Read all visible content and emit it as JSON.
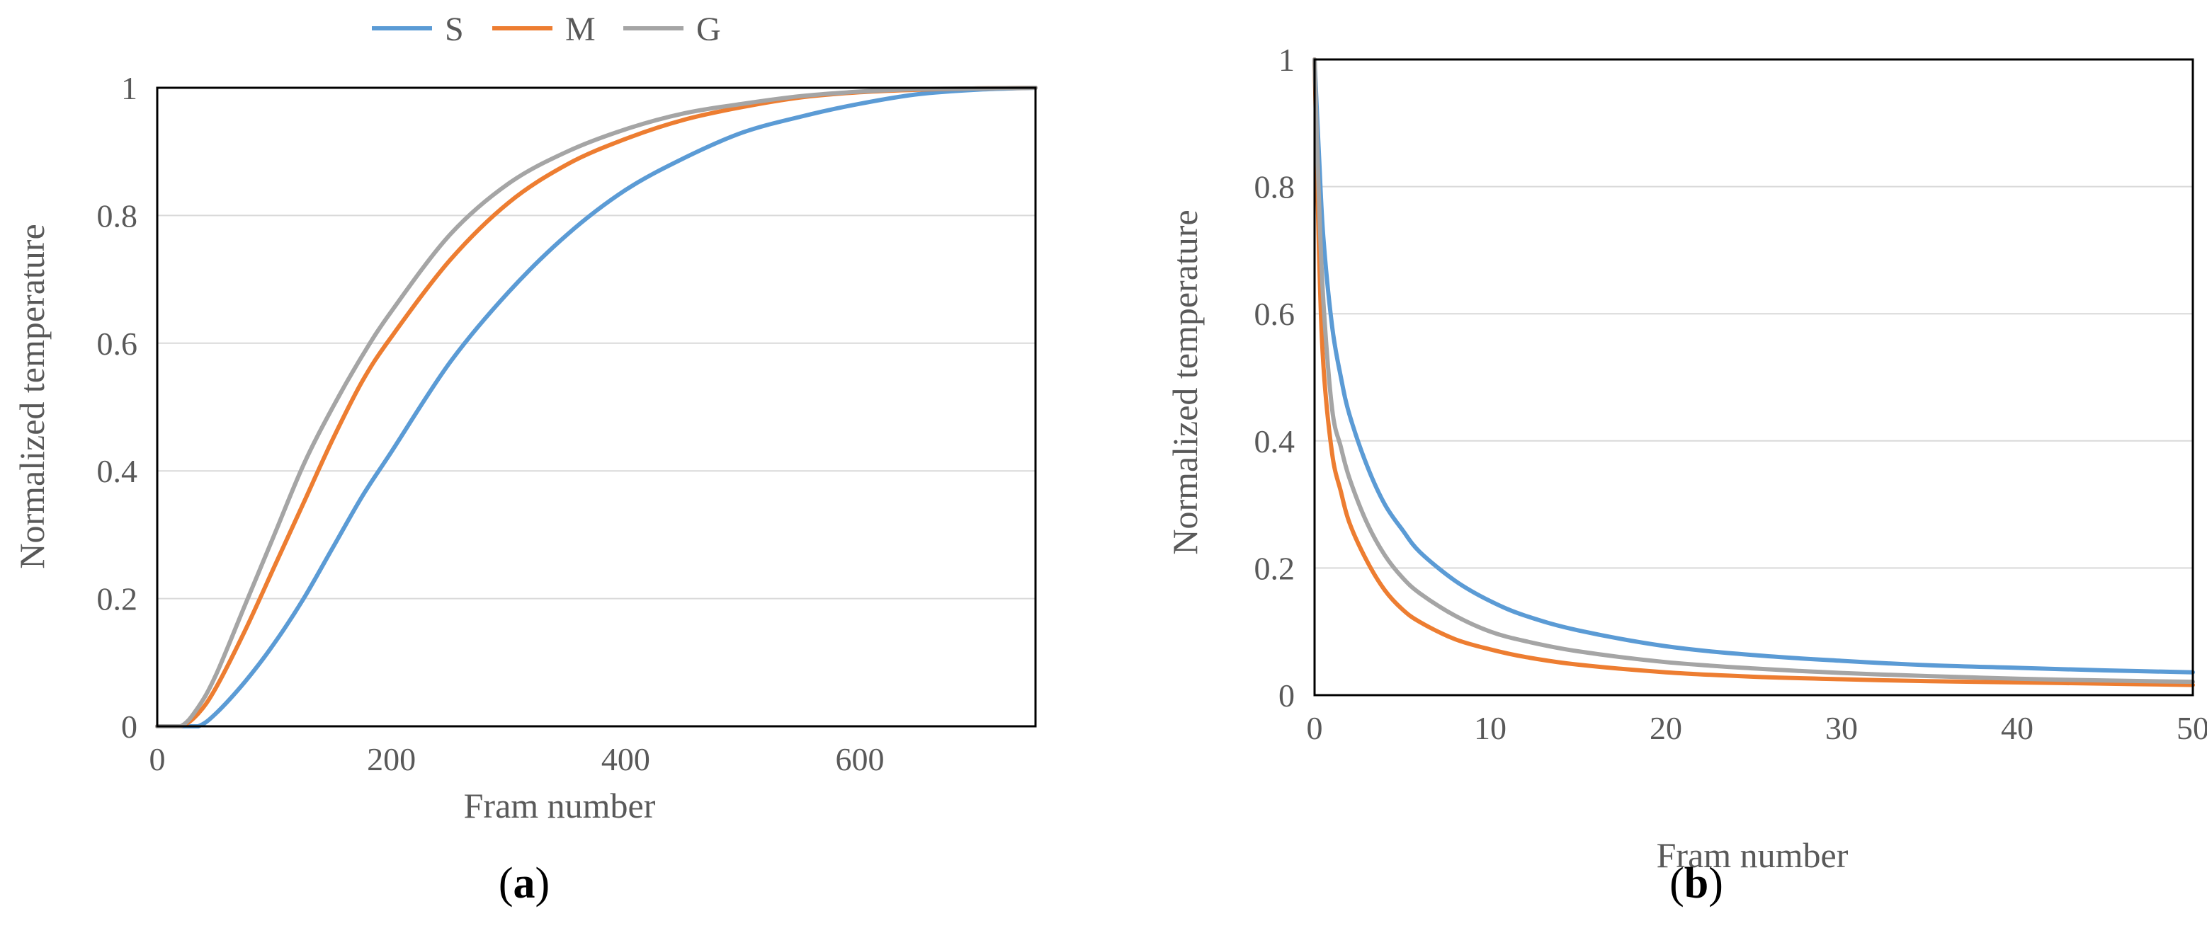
{
  "colors": {
    "S": "#5b9bd5",
    "M": "#ed7d31",
    "G": "#a5a5a5",
    "grid": "#d9d9d9",
    "frame": "#000000",
    "text": "#595959"
  },
  "legend": {
    "items": [
      "S",
      "M",
      "G"
    ]
  },
  "chart_data": [
    {
      "type": "line",
      "panel": "a",
      "panel_label": {
        "open": "(",
        "letter": "a",
        "close": ")"
      },
      "title": "",
      "xlabel": "Fram number",
      "ylabel": "Normalized  temperature",
      "xlim": [
        0,
        750
      ],
      "ylim": [
        0,
        1
      ],
      "xticks": [
        0,
        200,
        400,
        600
      ],
      "xtick_labels": [
        "0",
        "200",
        "400",
        "600"
      ],
      "yticks": [
        0,
        0.2,
        0.4,
        0.6,
        0.8,
        1
      ],
      "ytick_labels": [
        "0",
        "0.2",
        "0.4",
        "0.6",
        "0.8",
        "1"
      ],
      "grid": true,
      "legend_position": "top-center",
      "series": [
        {
          "name": "S",
          "x": [
            0,
            20,
            35,
            50,
            75,
            100,
            125,
            150,
            175,
            200,
            250,
            300,
            350,
            400,
            450,
            500,
            550,
            600,
            650,
            700,
            750
          ],
          "y": [
            0,
            0,
            0,
            0.02,
            0.07,
            0.13,
            0.2,
            0.28,
            0.36,
            0.43,
            0.57,
            0.68,
            0.77,
            0.84,
            0.89,
            0.93,
            0.955,
            0.975,
            0.99,
            0.997,
            1
          ]
        },
        {
          "name": "M",
          "x": [
            0,
            20,
            35,
            50,
            75,
            100,
            125,
            150,
            175,
            200,
            250,
            300,
            350,
            400,
            450,
            500,
            550,
            600,
            650,
            700,
            750
          ],
          "y": [
            0,
            0,
            0.02,
            0.06,
            0.15,
            0.25,
            0.35,
            0.45,
            0.54,
            0.61,
            0.73,
            0.82,
            0.88,
            0.92,
            0.95,
            0.97,
            0.985,
            0.993,
            0.997,
            0.999,
            1
          ]
        },
        {
          "name": "G",
          "x": [
            0,
            20,
            35,
            50,
            75,
            100,
            125,
            150,
            175,
            200,
            250,
            300,
            350,
            400,
            450,
            500,
            550,
            600,
            650,
            700,
            750
          ],
          "y": [
            0,
            0,
            0.03,
            0.08,
            0.19,
            0.3,
            0.41,
            0.5,
            0.58,
            0.65,
            0.77,
            0.85,
            0.9,
            0.935,
            0.96,
            0.975,
            0.987,
            0.994,
            0.998,
            0.999,
            1
          ]
        }
      ]
    },
    {
      "type": "line",
      "panel": "b",
      "panel_label": {
        "open": "(",
        "letter": "b",
        "close": ")"
      },
      "title": "",
      "xlabel": "Fram number",
      "ylabel": "Normalized  temperature",
      "xlim": [
        0,
        50
      ],
      "ylim": [
        0,
        1
      ],
      "xticks": [
        0,
        10,
        20,
        30,
        40,
        50
      ],
      "xtick_labels": [
        "0",
        "10",
        "20",
        "30",
        "40",
        "50"
      ],
      "yticks": [
        0,
        0.2,
        0.4,
        0.6,
        0.8,
        1
      ],
      "ytick_labels": [
        "0",
        "0.2",
        "0.4",
        "0.6",
        "0.8",
        "1"
      ],
      "grid": true,
      "series": [
        {
          "name": "S",
          "x": [
            0,
            0.25,
            0.5,
            1,
            1.5,
            2,
            3,
            4,
            5,
            6,
            8,
            10,
            12,
            15,
            20,
            25,
            30,
            35,
            40,
            45,
            50
          ],
          "y": [
            1,
            0.85,
            0.72,
            0.58,
            0.5,
            0.44,
            0.36,
            0.3,
            0.26,
            0.225,
            0.18,
            0.148,
            0.125,
            0.102,
            0.077,
            0.063,
            0.054,
            0.047,
            0.043,
            0.039,
            0.036
          ]
        },
        {
          "name": "M",
          "x": [
            0,
            0.25,
            0.5,
            1,
            1.5,
            2,
            3,
            4,
            5,
            6,
            8,
            10,
            12,
            15,
            20,
            25,
            30,
            35,
            40,
            45,
            50
          ],
          "y": [
            1,
            0.7,
            0.52,
            0.38,
            0.32,
            0.27,
            0.21,
            0.165,
            0.135,
            0.115,
            0.088,
            0.072,
            0.06,
            0.048,
            0.036,
            0.029,
            0.025,
            0.022,
            0.02,
            0.018,
            0.016
          ]
        },
        {
          "name": "G",
          "x": [
            0,
            0.25,
            0.5,
            1,
            1.5,
            2,
            3,
            4,
            5,
            6,
            8,
            10,
            12,
            15,
            20,
            25,
            30,
            35,
            40,
            45,
            50
          ],
          "y": [
            1,
            0.78,
            0.62,
            0.45,
            0.39,
            0.34,
            0.27,
            0.22,
            0.185,
            0.16,
            0.125,
            0.1,
            0.085,
            0.069,
            0.052,
            0.042,
            0.035,
            0.03,
            0.026,
            0.023,
            0.021
          ]
        }
      ]
    }
  ]
}
